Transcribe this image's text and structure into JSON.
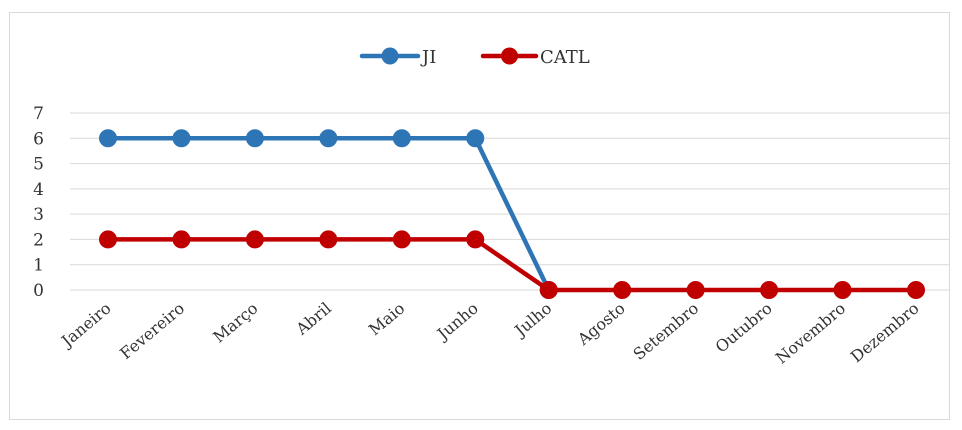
{
  "chart_data": {
    "type": "line",
    "categories": [
      "Janeiro",
      "Fevereiro",
      "Março",
      "Abril",
      "Maio",
      "Junho",
      "Julho",
      "Agosto",
      "Setembro",
      "Outubro",
      "Novembro",
      "Dezembro"
    ],
    "series": [
      {
        "name": "JI",
        "color": "#2e75b6",
        "values": [
          6,
          6,
          6,
          6,
          6,
          6,
          0,
          0,
          0,
          0,
          0,
          0
        ],
        "points_shown": 7
      },
      {
        "name": "CATL",
        "color": "#c00000",
        "values": [
          2,
          2,
          2,
          2,
          2,
          2,
          0,
          0,
          0,
          0,
          0,
          0
        ]
      }
    ],
    "y_ticks": [
      "0",
      "1",
      "2",
      "3",
      "4",
      "5",
      "6",
      "7"
    ],
    "ylim": [
      0,
      7
    ],
    "grid": true,
    "legend_position": "top-center",
    "title": "",
    "xlabel": "",
    "ylabel": ""
  }
}
